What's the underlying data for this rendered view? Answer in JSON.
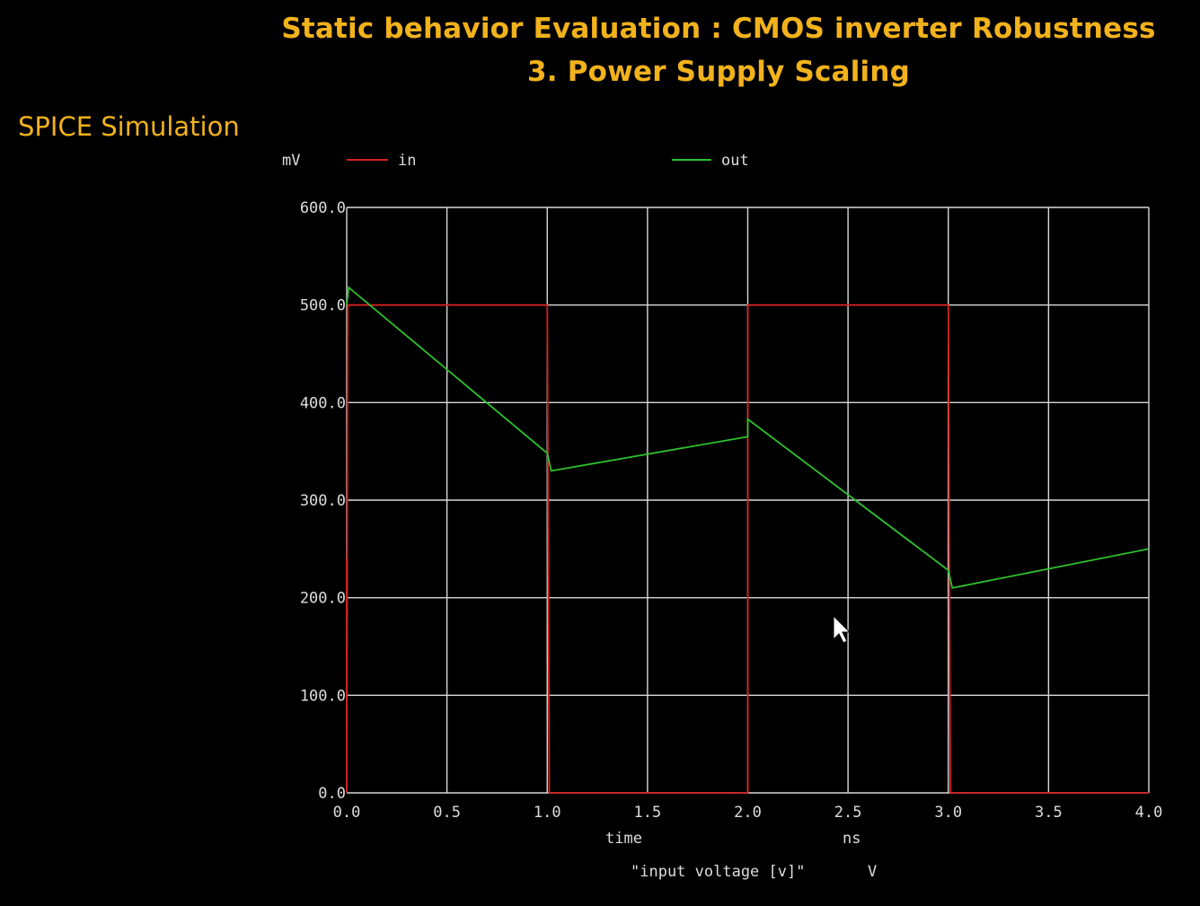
{
  "slide": {
    "title_line1": "Static behavior Evaluation : CMOS inverter Robustness",
    "title_line2": "3. Power Supply Scaling",
    "section_label": "SPICE Simulation"
  },
  "chart_data": {
    "type": "line",
    "y_unit": "mV",
    "xlabel": "time",
    "x_unit": "ns",
    "footer_label": "\"input voltage [v]\"",
    "footer_unit": "V",
    "xlim": [
      0,
      4
    ],
    "ylim": [
      0,
      600
    ],
    "x_ticks": [
      "0.0",
      "0.5",
      "1.0",
      "1.5",
      "2.0",
      "2.5",
      "3.0",
      "3.5",
      "4.0"
    ],
    "y_ticks": [
      "0.0",
      "100.0",
      "200.0",
      "300.0",
      "400.0",
      "500.0",
      "600.0"
    ],
    "grid": true,
    "legend_position": "top",
    "series": [
      {
        "name": "in",
        "color": "#d42020",
        "x": [
          0.0,
          0.0,
          0.005,
          1.0,
          1.01,
          2.0,
          2.0,
          3.0,
          3.01,
          4.0
        ],
        "y": [
          240,
          0,
          500,
          500,
          0,
          0,
          500,
          500,
          0,
          0
        ]
      },
      {
        "name": "out",
        "color": "#2ec02e",
        "x": [
          0.0,
          0.01,
          1.0,
          1.02,
          2.0,
          2.0,
          3.0,
          3.02,
          4.0
        ],
        "y": [
          500,
          518,
          348,
          330,
          365,
          383,
          228,
          210,
          250
        ]
      }
    ]
  }
}
